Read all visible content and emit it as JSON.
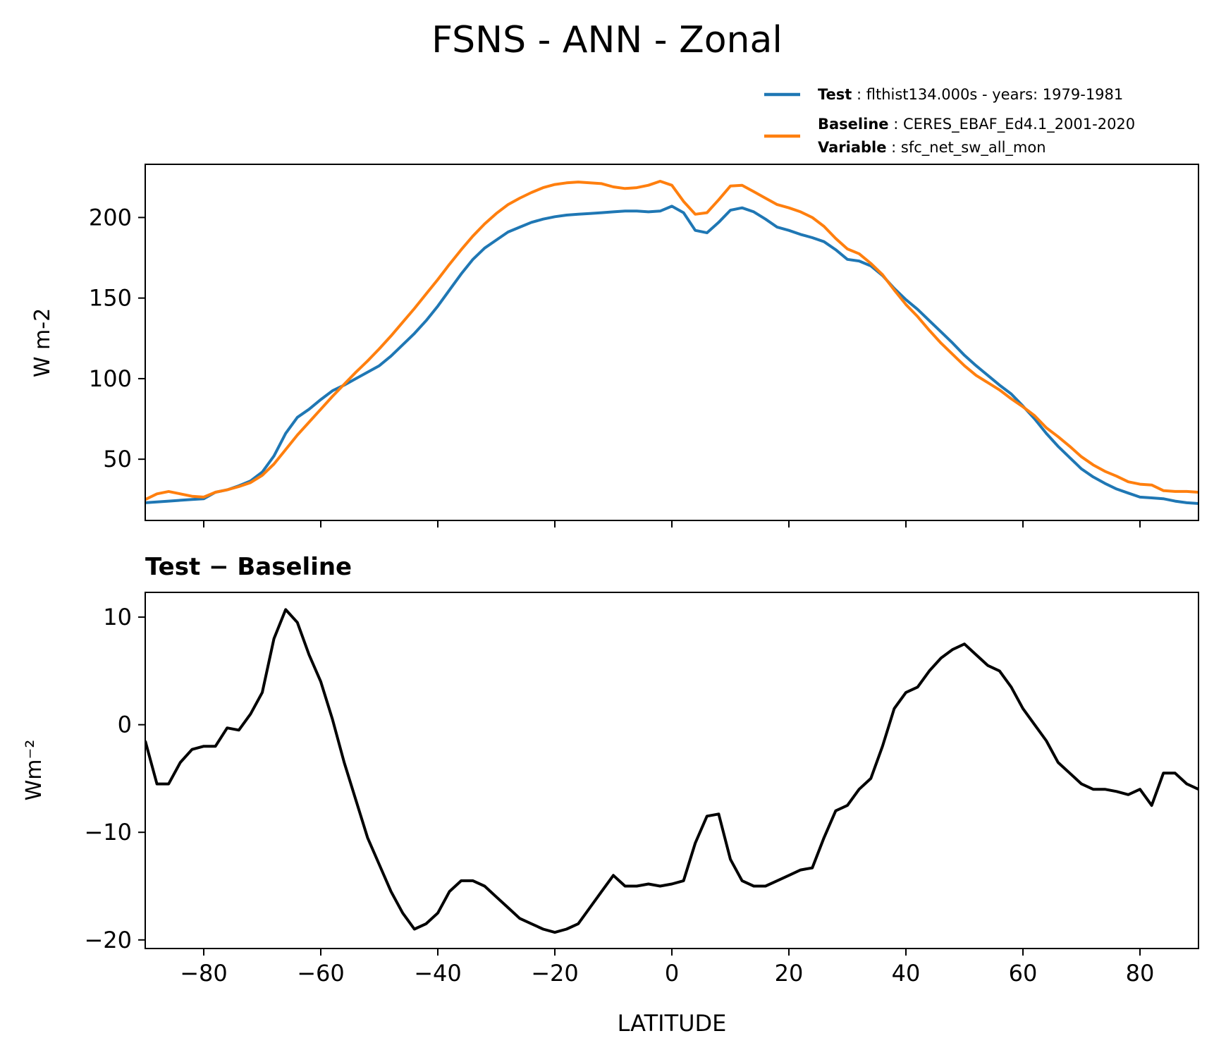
{
  "title": "FSNS - ANN - Zonal",
  "legend": {
    "placement": "top-right, above upper panel",
    "entries": [
      {
        "lines": [
          {
            "key": "Test",
            "value": "flthist134.000s - years: 1979-1981"
          }
        ],
        "color": "#1f77b4"
      },
      {
        "lines": [
          {
            "key": "Baseline",
            "value": "CERES_EBAF_Ed4.1_2001-2020"
          },
          {
            "key": "Variable",
            "value": "sfc_net_sw_all_mon"
          }
        ],
        "color": "#ff7f0e"
      }
    ]
  },
  "chart_data": [
    {
      "type": "line",
      "panel": "top",
      "title": "",
      "xlabel": "",
      "ylabel": "W m-2",
      "xlim": [
        -90,
        90
      ],
      "ylim": [
        12,
        233
      ],
      "xticks": [
        -80,
        -60,
        -40,
        -20,
        0,
        20,
        40,
        60,
        80
      ],
      "yticks": [
        50,
        100,
        150,
        200
      ],
      "ytick_labels": [
        "50",
        "100",
        "150",
        "200"
      ],
      "grid": false,
      "x": [
        -90,
        -88,
        -86,
        -84,
        -82,
        -80,
        -78,
        -76,
        -74,
        -72,
        -70,
        -68,
        -66,
        -64,
        -62,
        -60,
        -58,
        -56,
        -54,
        -52,
        -50,
        -48,
        -46,
        -44,
        -42,
        -40,
        -38,
        -36,
        -34,
        -32,
        -30,
        -28,
        -26,
        -24,
        -22,
        -20,
        -18,
        -16,
        -14,
        -12,
        -10,
        -8,
        -6,
        -4,
        -2,
        0,
        2,
        4,
        6,
        8,
        10,
        12,
        14,
        16,
        18,
        20,
        22,
        24,
        26,
        28,
        30,
        32,
        34,
        36,
        38,
        40,
        42,
        44,
        46,
        48,
        50,
        52,
        54,
        56,
        58,
        60,
        62,
        64,
        66,
        68,
        70,
        72,
        74,
        76,
        78,
        80,
        82,
        84,
        86,
        88,
        90
      ],
      "series": [
        {
          "name": "Test",
          "color": "#1f77b4",
          "values": [
            23,
            23.5,
            24,
            24.5,
            25,
            25.5,
            29.5,
            31,
            33.5,
            36.5,
            42,
            52,
            66,
            76,
            81,
            87,
            92.5,
            96,
            100,
            104,
            108,
            114,
            121,
            128,
            136,
            145,
            155,
            165,
            174,
            181,
            186,
            191,
            194,
            197,
            199,
            200.5,
            201.5,
            202,
            202.5,
            203,
            203.5,
            204,
            204,
            203.5,
            204,
            207,
            203,
            192,
            190.5,
            197,
            204.5,
            206,
            203.5,
            199,
            194,
            192,
            189.5,
            187.5,
            185,
            180,
            174,
            173,
            170,
            164,
            156,
            149,
            143,
            136,
            129,
            122,
            114.5,
            108,
            102,
            96,
            90.5,
            83,
            75,
            66,
            58,
            51,
            44,
            39,
            35,
            31.5,
            29,
            26.5,
            26,
            25.5,
            24,
            23,
            22.5
          ]
        },
        {
          "name": "Baseline",
          "color": "#ff7f0e",
          "values": [
            25,
            28.5,
            30,
            28.5,
            27,
            26.5,
            29.5,
            31,
            33,
            35.5,
            40,
            47,
            56,
            65,
            73,
            81,
            89,
            96.5,
            104,
            111,
            118.5,
            126.5,
            135,
            143.5,
            152.5,
            161.5,
            171,
            180,
            188.5,
            196,
            202.5,
            208,
            212,
            215.5,
            218.5,
            220.5,
            221.5,
            222,
            221.5,
            221,
            219,
            218,
            218.5,
            220,
            222.5,
            220,
            210,
            202,
            203,
            211,
            219.5,
            220,
            216,
            212,
            208,
            206,
            203.5,
            200,
            194.5,
            187,
            180.5,
            177.5,
            171.5,
            164.5,
            155,
            146,
            138.5,
            130,
            122,
            115,
            108,
            102,
            97.5,
            93,
            87.5,
            82.5,
            77,
            69.5,
            64,
            58,
            51.5,
            46.5,
            42.5,
            39.5,
            36,
            34.5,
            34,
            30.5,
            30,
            30,
            29.5
          ]
        }
      ]
    },
    {
      "type": "line",
      "panel": "bottom",
      "title": "Test − Baseline",
      "xlabel": "LATITUDE",
      "ylabel": "Wm⁻²",
      "xlim": [
        -90,
        90
      ],
      "ylim": [
        -20.8,
        12.3
      ],
      "xticks": [
        -80,
        -60,
        -40,
        -20,
        0,
        20,
        40,
        60,
        80
      ],
      "xtick_labels": [
        "−80",
        "−60",
        "−40",
        "−20",
        "0",
        "20",
        "40",
        "60",
        "80"
      ],
      "yticks": [
        -20,
        -10,
        0,
        10
      ],
      "ytick_labels": [
        "−20",
        "−10",
        "0",
        "10"
      ],
      "grid": false,
      "x": [
        -90,
        -88,
        -86,
        -84,
        -82,
        -80,
        -78,
        -76,
        -74,
        -72,
        -70,
        -68,
        -66,
        -64,
        -62,
        -60,
        -58,
        -56,
        -54,
        -52,
        -50,
        -48,
        -46,
        -44,
        -42,
        -40,
        -38,
        -36,
        -34,
        -32,
        -30,
        -28,
        -26,
        -24,
        -22,
        -20,
        -18,
        -16,
        -14,
        -12,
        -10,
        -8,
        -6,
        -4,
        -2,
        0,
        2,
        4,
        6,
        8,
        10,
        12,
        14,
        16,
        18,
        20,
        22,
        24,
        26,
        28,
        30,
        32,
        34,
        36,
        38,
        40,
        42,
        44,
        46,
        48,
        50,
        52,
        54,
        56,
        58,
        60,
        62,
        64,
        66,
        68,
        70,
        72,
        74,
        76,
        78,
        80,
        82,
        84,
        86,
        88,
        90
      ],
      "series": [
        {
          "name": "Test − Baseline",
          "color": "#000000",
          "values": [
            -1.5,
            -5.5,
            -5.5,
            -3.5,
            -2.3,
            -2,
            -2,
            -0.3,
            -0.5,
            1,
            3,
            8,
            10.7,
            9.5,
            6.5,
            4,
            0.5,
            -3.5,
            -7,
            -10.5,
            -13,
            -15.5,
            -17.5,
            -19,
            -18.5,
            -17.5,
            -15.5,
            -14.5,
            -14.5,
            -15,
            -16,
            -17,
            -18,
            -18.5,
            -19,
            -19.3,
            -19,
            -18.5,
            -17,
            -15.5,
            -14,
            -15,
            -15,
            -14.8,
            -15,
            -14.8,
            -14.5,
            -11,
            -8.5,
            -8.3,
            -12.5,
            -14.5,
            -15,
            -15,
            -14.5,
            -14,
            -13.5,
            -13.3,
            -10.5,
            -8,
            -7.5,
            -6,
            -5,
            -2,
            1.5,
            3,
            3.5,
            5,
            6.2,
            7,
            7.5,
            6.5,
            5.5,
            5,
            3.5,
            1.5,
            0,
            -1.5,
            -3.5,
            -4.5,
            -5.5,
            -6,
            -6,
            -6.2,
            -6.5,
            -6,
            -7.5,
            -4.5,
            -4.5,
            -5.5,
            -6
          ]
        }
      ]
    }
  ]
}
